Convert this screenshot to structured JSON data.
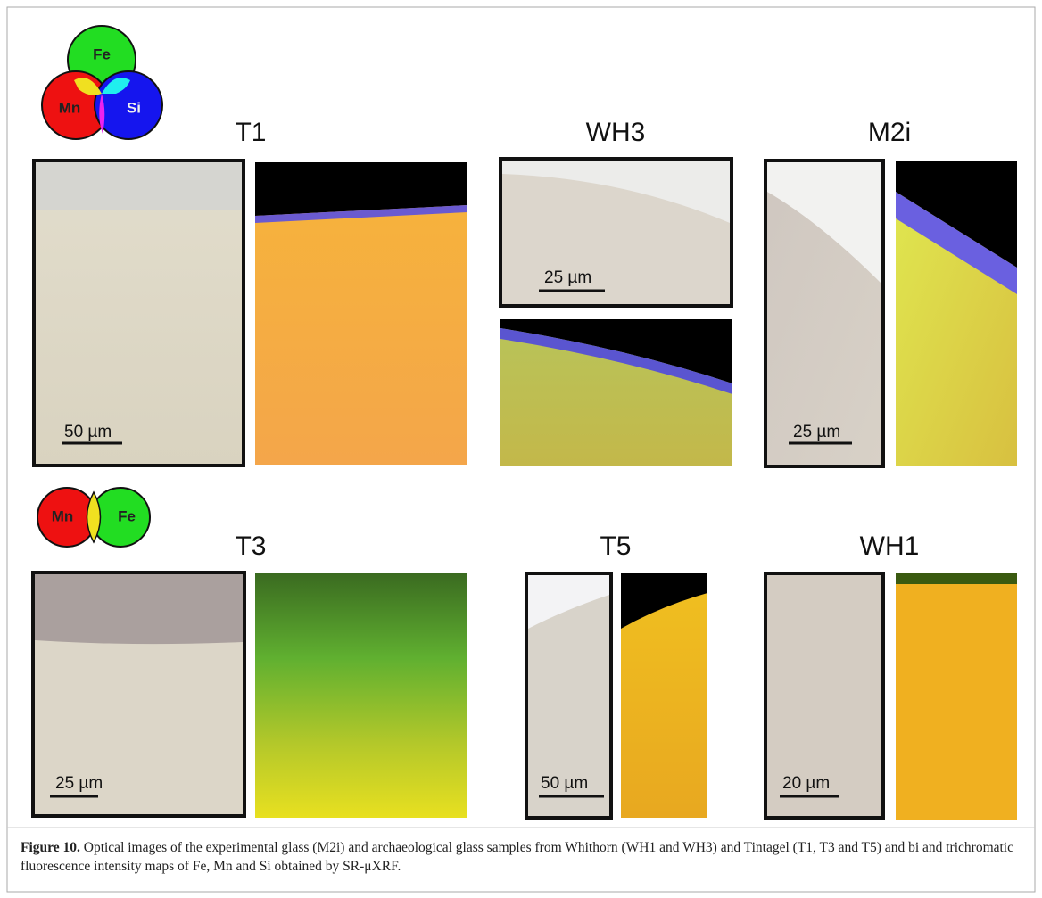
{
  "figure": {
    "legend_rgb": [
      "Fe",
      "Mn",
      "Si"
    ],
    "legend_rg": [
      "Mn",
      "Fe"
    ],
    "samples": [
      {
        "label": "T1",
        "scale": "50 µm"
      },
      {
        "label": "WH3",
        "scale": "25 µm"
      },
      {
        "label": "M2i",
        "scale": "25 µm"
      },
      {
        "label": "T3",
        "scale": "25 µm"
      },
      {
        "label": "T5",
        "scale": "50 µm"
      },
      {
        "label": "WH1",
        "scale": "20 µm"
      }
    ],
    "caption": {
      "label": "Figure 10.",
      "text": "Optical images of the experimental glass (M2i) and archaeological glass samples from Whithorn (WH1 and WH3) and Tintagel (T1, T3 and T5) and bi and trichromatic fluorescence intensity maps of Fe, Mn and Si obtained by SR-μXRF."
    }
  }
}
